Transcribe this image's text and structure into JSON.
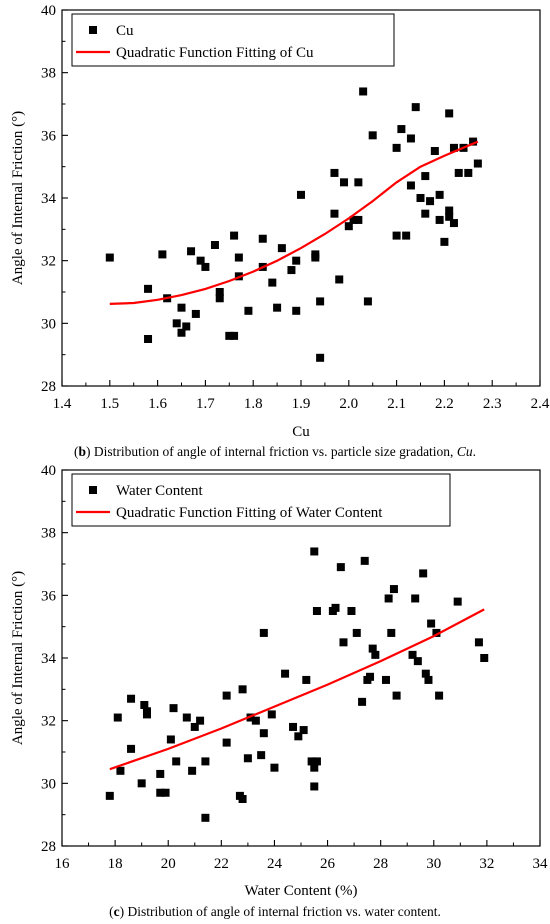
{
  "chart_data": [
    {
      "type": "scatter",
      "panel_letter": "b",
      "caption_text": ") Distribution of angle of internal friction vs. particle size gradation, ",
      "caption_italic": "Cu",
      "caption_end": ".",
      "title": "",
      "xlabel": "Cu",
      "ylabel": "Angle of Internal Friction (°)",
      "xlim": [
        1.4,
        2.4
      ],
      "ylim": [
        28,
        40
      ],
      "xticks": [
        1.4,
        1.5,
        1.6,
        1.7,
        1.8,
        1.9,
        2.0,
        2.1,
        2.2,
        2.3,
        2.4
      ],
      "xtick_labels": [
        "1.4",
        "1.5",
        "1.6",
        "1.7",
        "1.8",
        "1.9",
        "2.0",
        "2.1",
        "2.2",
        "2.3",
        "2.4"
      ],
      "yticks": [
        28,
        30,
        32,
        34,
        36,
        38,
        40
      ],
      "ytick_labels": [
        "28",
        "30",
        "32",
        "34",
        "36",
        "38",
        "40"
      ],
      "grid": false,
      "legend_position": "top-left",
      "series": [
        {
          "name": "Cu",
          "kind": "scatter",
          "color": "#000000",
          "x": [
            1.5,
            1.58,
            1.58,
            1.61,
            1.62,
            1.64,
            1.65,
            1.65,
            1.66,
            1.67,
            1.68,
            1.69,
            1.7,
            1.72,
            1.73,
            1.73,
            1.75,
            1.76,
            1.76,
            1.77,
            1.77,
            1.79,
            1.82,
            1.82,
            1.84,
            1.85,
            1.86,
            1.88,
            1.89,
            1.89,
            1.9,
            1.93,
            1.93,
            1.94,
            1.94,
            1.97,
            1.97,
            1.98,
            1.99,
            2.0,
            2.01,
            2.02,
            2.02,
            2.04,
            2.05,
            2.1,
            2.1,
            2.11,
            2.12,
            2.13,
            2.13,
            2.14,
            2.15,
            2.16,
            2.16,
            2.17,
            2.18,
            2.19,
            2.19,
            2.2,
            2.21,
            2.21,
            2.21,
            2.22,
            2.22,
            2.23,
            2.24,
            2.25,
            2.26,
            2.27
          ],
          "y": [
            32.1,
            29.5,
            31.1,
            32.2,
            30.8,
            30.0,
            29.7,
            30.5,
            29.9,
            32.3,
            30.3,
            32.0,
            31.8,
            32.5,
            30.8,
            31.0,
            29.6,
            32.8,
            29.6,
            31.5,
            32.1,
            30.4,
            32.7,
            31.8,
            31.3,
            30.5,
            32.4,
            31.7,
            30.4,
            32.0,
            34.1,
            32.1,
            32.2,
            28.9,
            30.7,
            33.5,
            34.8,
            31.4,
            34.5,
            33.1,
            33.3,
            33.3,
            34.5,
            30.7,
            36.0,
            35.6,
            32.8,
            36.2,
            32.8,
            35.9,
            34.4,
            36.9,
            34.0,
            34.7,
            33.5,
            33.9,
            35.5,
            33.3,
            34.1,
            32.6,
            36.7,
            33.4,
            33.6,
            35.6,
            33.2,
            34.8,
            35.6,
            34.8,
            35.8,
            35.1
          ],
          "x_extra": [
            2.03
          ],
          "y_extra": [
            37.4
          ]
        },
        {
          "name": "Quadratic Function Fitting of Cu",
          "kind": "line",
          "color": "#ff0000",
          "x": [
            1.5,
            1.55,
            1.6,
            1.65,
            1.7,
            1.75,
            1.8,
            1.85,
            1.9,
            1.95,
            2.0,
            2.05,
            2.1,
            2.15,
            2.2,
            2.27
          ],
          "y": [
            30.62,
            30.65,
            30.75,
            30.9,
            31.1,
            31.35,
            31.65,
            32.0,
            32.4,
            32.85,
            33.35,
            33.9,
            34.5,
            35.0,
            35.35,
            35.8
          ]
        }
      ]
    },
    {
      "type": "scatter",
      "panel_letter": "c",
      "caption_text": ") Distribution of angle of internal friction vs. water content.",
      "title": "",
      "xlabel": "Water Content (%)",
      "ylabel": "Angle of Internal Friction (°)",
      "xlim": [
        16,
        34
      ],
      "ylim": [
        28,
        40
      ],
      "xticks": [
        16,
        18,
        20,
        22,
        24,
        26,
        28,
        30,
        32,
        34
      ],
      "xtick_labels": [
        "16",
        "18",
        "20",
        "22",
        "24",
        "26",
        "28",
        "30",
        "32",
        "34"
      ],
      "yticks": [
        28,
        30,
        32,
        34,
        36,
        38,
        40
      ],
      "ytick_labels": [
        "28",
        "30",
        "32",
        "34",
        "36",
        "38",
        "40"
      ],
      "grid": false,
      "legend_position": "top-left",
      "series": [
        {
          "name": "Water Content",
          "kind": "scatter",
          "color": "#000000",
          "x": [
            17.8,
            18.1,
            18.2,
            18.6,
            18.6,
            19.0,
            19.1,
            19.2,
            19.2,
            19.7,
            19.7,
            19.9,
            20.1,
            20.2,
            20.3,
            20.7,
            20.9,
            21.0,
            21.2,
            21.4,
            21.4,
            22.2,
            22.2,
            22.7,
            22.8,
            22.8,
            23.0,
            23.1,
            23.3,
            23.5,
            23.6,
            23.6,
            23.9,
            24.0,
            24.4,
            24.7,
            24.9,
            25.1,
            25.2,
            25.4,
            25.5,
            25.5,
            25.5,
            25.6,
            25.6,
            26.2,
            26.3,
            26.5,
            26.6,
            26.9,
            27.1,
            27.3,
            27.4,
            27.5,
            27.6,
            27.7,
            27.8,
            28.2,
            28.3,
            28.4,
            28.5,
            28.6,
            29.2,
            29.3,
            29.4,
            29.6,
            29.7,
            29.8,
            29.9,
            30.1,
            30.2,
            30.9,
            31.7,
            31.9
          ],
          "y": [
            29.6,
            32.1,
            30.4,
            32.7,
            31.1,
            30.0,
            32.5,
            32.2,
            32.3,
            30.3,
            29.7,
            29.7,
            31.4,
            32.4,
            30.7,
            32.1,
            30.4,
            31.8,
            32.0,
            28.9,
            30.7,
            31.3,
            32.8,
            29.6,
            29.5,
            33.0,
            30.8,
            32.1,
            32.0,
            30.9,
            31.6,
            34.8,
            32.2,
            30.5,
            33.5,
            31.8,
            31.5,
            31.7,
            33.3,
            30.7,
            30.5,
            29.9,
            37.4,
            35.5,
            30.7,
            35.5,
            35.6,
            36.9,
            34.5,
            35.5,
            34.8,
            32.6,
            37.1,
            33.3,
            33.4,
            34.3,
            34.1,
            33.3,
            35.9,
            34.8,
            36.2,
            32.8,
            34.1,
            35.9,
            33.9,
            36.7,
            33.5,
            33.3,
            35.1,
            34.8,
            32.8,
            35.8,
            34.5,
            34.0
          ]
        },
        {
          "name": "Quadratic Function Fitting of Water Content",
          "kind": "line",
          "color": "#ff0000",
          "x": [
            17.8,
            20,
            22,
            24,
            26,
            28,
            30,
            31.9
          ],
          "y": [
            30.45,
            31.1,
            31.75,
            32.45,
            33.15,
            33.9,
            34.7,
            35.55
          ]
        }
      ]
    }
  ]
}
